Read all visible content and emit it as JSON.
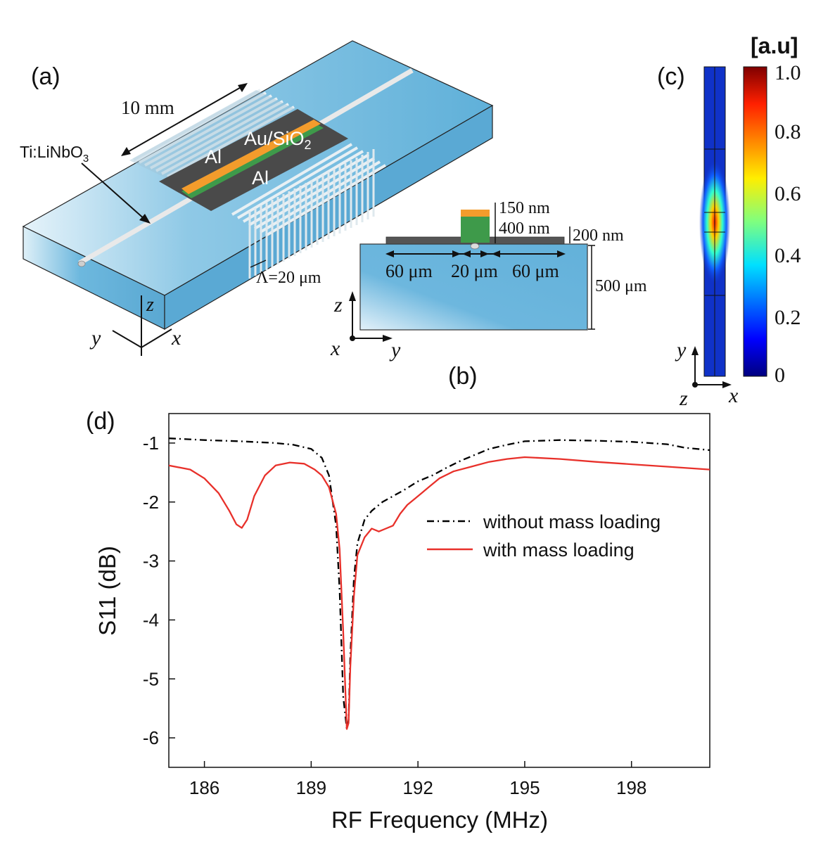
{
  "panel_a": {
    "label": "(a)",
    "length": "10 mm",
    "waveguide": "Ti:LiNbO",
    "waveguide_sub": "3",
    "electrode_1": "Al",
    "electrode_2": "Al",
    "film": "Au/SiO",
    "film_sub": "2",
    "period": "Λ=20 μm",
    "axis_z": "z",
    "axis_y": "y",
    "axis_x": "x"
  },
  "panel_b": {
    "label": "(b)",
    "t1": "150 nm",
    "t2": "400 nm",
    "t3": "200 nm",
    "w1": "60 μm",
    "w2": "20 μm",
    "w3": "60 μm",
    "depth": "500 μm",
    "axis_z": "z",
    "axis_x": "x",
    "axis_y": "y"
  },
  "panel_c": {
    "label": "(c)",
    "unit": "[a.u]",
    "ticks": [
      "1.0",
      "0.8",
      "0.6",
      "0.4",
      "0.2",
      "0"
    ],
    "axis_y": "y",
    "axis_z": "z",
    "axis_x": "x"
  },
  "panel_d": {
    "label": "(d)"
  },
  "colors": {
    "substrate": "#6bb6dc",
    "electrode": "#4a4a4a",
    "gold": "#f39c2c",
    "silica": "#3e9a4a",
    "series_without": "#000000",
    "series_with": "#e8302a"
  },
  "chart_data": {
    "type": "line",
    "xlabel": "RF Frequency (MHz)",
    "ylabel": "S11 (dB)",
    "xlim": [
      185,
      200.2
    ],
    "ylim": [
      -6.5,
      -0.5
    ],
    "xticks": [
      186,
      189,
      192,
      195,
      198
    ],
    "yticks": [
      -1,
      -2,
      -3,
      -4,
      -5,
      -6
    ],
    "legend_position": "center-right",
    "series": [
      {
        "name": "without mass loading",
        "style": "dash-dot",
        "x": [
          185.0,
          186.0,
          187.0,
          188.0,
          188.5,
          189.0,
          189.3,
          189.5,
          189.7,
          189.8,
          189.9,
          190.0,
          190.05,
          190.1,
          190.2,
          190.3,
          190.5,
          190.7,
          191.0,
          191.3,
          191.6,
          192.0,
          192.4,
          192.8,
          193.2,
          193.6,
          194.0,
          194.5,
          195.0,
          196.0,
          197.0,
          198.0,
          199.0,
          199.5,
          200.2
        ],
        "y": [
          -0.92,
          -0.95,
          -0.97,
          -1.0,
          -1.03,
          -1.1,
          -1.25,
          -1.55,
          -2.4,
          -3.5,
          -5.3,
          -5.85,
          -5.7,
          -4.6,
          -3.3,
          -2.7,
          -2.3,
          -2.15,
          -2.0,
          -1.9,
          -1.8,
          -1.65,
          -1.55,
          -1.42,
          -1.3,
          -1.2,
          -1.1,
          -1.03,
          -0.97,
          -0.95,
          -0.96,
          -0.98,
          -1.02,
          -1.08,
          -1.12
        ]
      },
      {
        "name": "with mass loading",
        "style": "solid",
        "x": [
          185.0,
          185.6,
          186.0,
          186.4,
          186.7,
          186.9,
          187.05,
          187.2,
          187.4,
          187.7,
          188.0,
          188.4,
          188.8,
          189.1,
          189.3,
          189.5,
          189.7,
          189.8,
          189.9,
          190.0,
          190.05,
          190.1,
          190.2,
          190.3,
          190.5,
          190.7,
          190.9,
          191.1,
          191.3,
          191.5,
          191.7,
          191.9,
          192.1,
          192.3,
          192.6,
          193.0,
          193.5,
          194.0,
          194.5,
          195.0,
          196.0,
          197.0,
          198.0,
          199.0,
          200.2
        ],
        "y": [
          -1.38,
          -1.45,
          -1.6,
          -1.85,
          -2.15,
          -2.38,
          -2.44,
          -2.3,
          -1.9,
          -1.55,
          -1.38,
          -1.33,
          -1.35,
          -1.45,
          -1.55,
          -1.75,
          -2.2,
          -2.8,
          -4.2,
          -5.85,
          -5.75,
          -4.8,
          -3.6,
          -2.9,
          -2.6,
          -2.45,
          -2.5,
          -2.45,
          -2.4,
          -2.2,
          -2.05,
          -1.95,
          -1.85,
          -1.75,
          -1.6,
          -1.48,
          -1.4,
          -1.32,
          -1.27,
          -1.24,
          -1.27,
          -1.32,
          -1.36,
          -1.4,
          -1.45
        ]
      }
    ]
  }
}
